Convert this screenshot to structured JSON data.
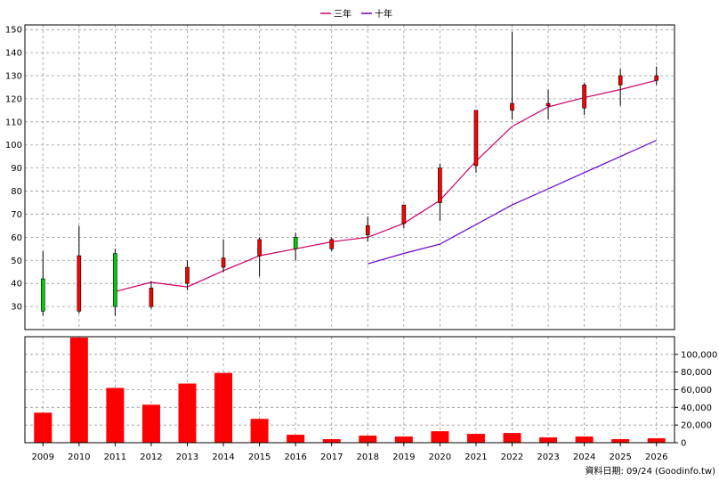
{
  "legend": {
    "ma3_label": "三年",
    "ma10_label": "十年"
  },
  "footnote": "資料日期: 09/24  (Goodinfo.tw)",
  "colors": {
    "up": "#FF0000",
    "down": "#00CC00",
    "ma3": "#CC0066",
    "ma10": "#6600CC",
    "volume": "#FF0000",
    "grid": "#999999"
  },
  "chart_data": [
    {
      "type": "candlestick",
      "title": "",
      "ylim": [
        20,
        152
      ],
      "y_ticks": [
        30,
        40,
        50,
        60,
        70,
        80,
        90,
        100,
        110,
        120,
        130,
        140,
        150
      ],
      "categories": [
        "2009",
        "2010",
        "2011",
        "2012",
        "2013",
        "2014",
        "2015",
        "2016",
        "2017",
        "2018",
        "2019",
        "2020",
        "2021",
        "2022",
        "2023",
        "2024",
        "2025",
        "2026"
      ],
      "ohlc": [
        {
          "year": "2009",
          "open": 42,
          "high": 54,
          "low": 26,
          "close": 28
        },
        {
          "year": "2010",
          "open": 28,
          "high": 65,
          "low": 27,
          "close": 52
        },
        {
          "year": "2011",
          "open": 53,
          "high": 55,
          "low": 26,
          "close": 30
        },
        {
          "year": "2012",
          "open": 30,
          "high": 41,
          "low": 29,
          "close": 38
        },
        {
          "year": "2013",
          "open": 40,
          "high": 50,
          "low": 37,
          "close": 47
        },
        {
          "year": "2014",
          "open": 47,
          "high": 59,
          "low": 45,
          "close": 51
        },
        {
          "year": "2015",
          "open": 52,
          "high": 60,
          "low": 43,
          "close": 59
        },
        {
          "year": "2016",
          "open": 60,
          "high": 62,
          "low": 50,
          "close": 55
        },
        {
          "year": "2017",
          "open": 55,
          "high": 60,
          "low": 54,
          "close": 59
        },
        {
          "year": "2018",
          "open": 61,
          "high": 69,
          "low": 58,
          "close": 65
        },
        {
          "year": "2019",
          "open": 66,
          "high": 74,
          "low": 64,
          "close": 74
        },
        {
          "year": "2020",
          "open": 75,
          "high": 92,
          "low": 67,
          "close": 90
        },
        {
          "year": "2021",
          "open": 91,
          "high": 115,
          "low": 88,
          "close": 115
        },
        {
          "year": "2022",
          "open": 115,
          "high": 149,
          "low": 111,
          "close": 118
        },
        {
          "year": "2023",
          "open": 117,
          "high": 124,
          "low": 111,
          "close": 118
        },
        {
          "year": "2024",
          "open": 116,
          "high": 127,
          "low": 113,
          "close": 126
        },
        {
          "year": "2025",
          "open": 126,
          "high": 133,
          "low": 117,
          "close": 130
        },
        {
          "year": "2026",
          "open": 128,
          "high": 134,
          "low": 126,
          "close": 130
        }
      ],
      "series": [
        {
          "name": "三年",
          "values": [
            null,
            null,
            36.5,
            40.5,
            38.5,
            45.5,
            52,
            55,
            58,
            60,
            66,
            76,
            93,
            108,
            116.5,
            120.5,
            124,
            128
          ]
        },
        {
          "name": "十年",
          "values": [
            null,
            null,
            null,
            null,
            null,
            null,
            null,
            null,
            null,
            48.5,
            53,
            57,
            65.5,
            74,
            81,
            88,
            95,
            102
          ]
        }
      ]
    },
    {
      "type": "bar",
      "title": "",
      "ylim": [
        0,
        120000
      ],
      "y_ticks": [
        0,
        20000,
        40000,
        60000,
        80000,
        100000
      ],
      "y_tick_labels": [
        "0",
        "20,000",
        "40,000",
        "60,000",
        "80,000",
        "100,000"
      ],
      "categories": [
        "2009",
        "2010",
        "2011",
        "2012",
        "2013",
        "2014",
        "2015",
        "2016",
        "2017",
        "2018",
        "2019",
        "2020",
        "2021",
        "2022",
        "2023",
        "2024",
        "2025",
        "2026"
      ],
      "values": [
        34000,
        121000,
        62000,
        43000,
        67000,
        79000,
        27000,
        9000,
        4000,
        8000,
        7000,
        13000,
        10000,
        11000,
        6000,
        7000,
        4000,
        5000
      ]
    }
  ]
}
